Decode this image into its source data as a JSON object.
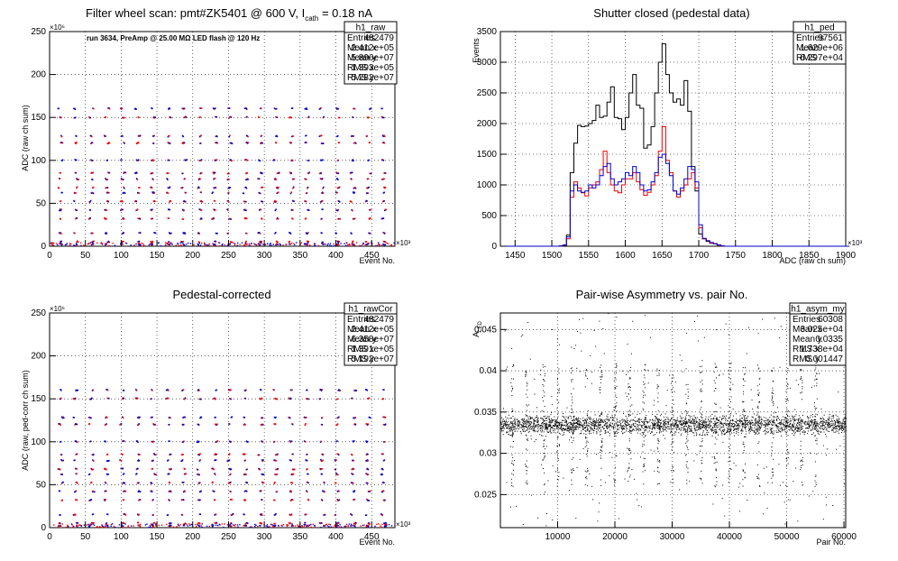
{
  "chart_data": [
    {
      "id": "p1",
      "type": "scatter",
      "title": "Filter wheel scan: pmt#ZK5401 @   600 V, I",
      "title_sub": "cath",
      "title_tail": " = 0.18 nA",
      "annotation": "run 3634, PreAmp @ 25.00 MΩ LED flash @  120 Hz",
      "xlabel": "Event No.",
      "ylabel": "ADC (raw ch sum)",
      "x_multiplier": "×10³",
      "y_multiplier": "×10⁶",
      "xlim": [
        0,
        482479
      ],
      "ylim": [
        0,
        250
      ],
      "x_ticks": [
        0,
        50,
        100,
        150,
        200,
        250,
        300,
        350,
        400,
        450
      ],
      "x_tick_labels": [
        "0",
        "50",
        "100",
        "150",
        "200",
        "250",
        "300",
        "350",
        "400",
        "450"
      ],
      "y_ticks": [
        0,
        50,
        100,
        150,
        200,
        250
      ],
      "y_tick_labels": [
        "0",
        "50",
        "100",
        "150",
        "200",
        "250"
      ],
      "grid": true,
      "levels": [
        160,
        150,
        128,
        120,
        100,
        85,
        78,
        68,
        62,
        52,
        42,
        32,
        15,
        5,
        2
      ],
      "colors": {
        "primary": "#0000cc",
        "secondary": "#ee0000"
      },
      "stats": {
        "name": "h1_raw",
        "rows": [
          {
            "label": "Entries",
            "value": "482479"
          },
          {
            "label": "Mean x",
            "value": "2.412e+05"
          },
          {
            "label": "Mean y",
            "value": "5.896e+07"
          },
          {
            "label": "RMS x",
            "value": "1.393e+05"
          },
          {
            "label": "RMS y",
            "value": "5.282e+07"
          }
        ]
      }
    },
    {
      "id": "p2",
      "type": "line",
      "title": "Shutter closed (pedestal data)",
      "xlabel": "ADC (raw ch sum)",
      "ylabel": "Events",
      "x_multiplier": "×10³",
      "xlim": [
        1430,
        1900
      ],
      "ylim": [
        0,
        3500
      ],
      "x_ticks": [
        1450,
        1500,
        1550,
        1600,
        1650,
        1700,
        1750,
        1800,
        1850,
        1900
      ],
      "x_tick_labels": [
        "1450",
        "1500",
        "1550",
        "1600",
        "1650",
        "1700",
        "1750",
        "1800",
        "1850",
        "1900"
      ],
      "y_ticks": [
        0,
        500,
        1000,
        1500,
        2000,
        2500,
        3000,
        3500
      ],
      "y_tick_labels": [
        "0",
        "500",
        "1000",
        "1500",
        "2000",
        "2500",
        "3000",
        "3500"
      ],
      "grid": true,
      "bin_start": 1430,
      "bin_width": 5,
      "series": [
        {
          "color": "#000000",
          "values": [
            0,
            0,
            0,
            0,
            0,
            0,
            0,
            0,
            0,
            0,
            0,
            0,
            0,
            0,
            0,
            0,
            5,
            20,
            180,
            1200,
            1680,
            1970,
            1950,
            1960,
            2000,
            2050,
            2300,
            2100,
            2120,
            2350,
            2600,
            2100,
            2080,
            1900,
            2100,
            2500,
            2800,
            2300,
            2250,
            1600,
            1650,
            1950,
            2500,
            3000,
            3300,
            2800,
            2500,
            2350,
            2400,
            2300,
            2700,
            2200,
            1300,
            900,
            200,
            120,
            80,
            50,
            40,
            20,
            5,
            0,
            0,
            0,
            0,
            0,
            0,
            0,
            0,
            0,
            0,
            0,
            0,
            0,
            0,
            0,
            0,
            0,
            0,
            0,
            0,
            0,
            0,
            0,
            0,
            0,
            0,
            0,
            0,
            0,
            0,
            0,
            0,
            0,
            0
          ]
        },
        {
          "color": "#ee0000",
          "values": [
            0,
            0,
            0,
            0,
            0,
            0,
            0,
            0,
            0,
            0,
            0,
            0,
            0,
            0,
            0,
            0,
            3,
            15,
            120,
            800,
            1050,
            950,
            870,
            820,
            950,
            1000,
            1050,
            1250,
            1550,
            1200,
            1000,
            900,
            870,
            1000,
            1100,
            1100,
            1200,
            1050,
            920,
            830,
            880,
            1000,
            1150,
            1550,
            1950,
            1400,
            1200,
            900,
            800,
            900,
            1000,
            1100,
            1200,
            950,
            300,
            120,
            90,
            50,
            40,
            20,
            5,
            0,
            0,
            0,
            0,
            0,
            0,
            0,
            0,
            0,
            0,
            0,
            0,
            0,
            0,
            0,
            0,
            0,
            0,
            0,
            0,
            0,
            0,
            0,
            0,
            0,
            0,
            0,
            0,
            0,
            0,
            0,
            0,
            0,
            0
          ]
        },
        {
          "color": "#0000cc",
          "values": [
            0,
            0,
            0,
            0,
            0,
            0,
            0,
            0,
            0,
            0,
            0,
            0,
            0,
            0,
            0,
            0,
            4,
            18,
            150,
            900,
            1000,
            900,
            880,
            900,
            1000,
            950,
            1000,
            1150,
            1300,
            1350,
            1100,
            1000,
            1050,
            1100,
            1200,
            1150,
            1300,
            1200,
            1000,
            900,
            920,
            1050,
            1200,
            1450,
            1500,
            1350,
            1150,
            900,
            850,
            950,
            1100,
            1300,
            1250,
            1050,
            350,
            130,
            90,
            60,
            40,
            20,
            5,
            0,
            0,
            0,
            0,
            0,
            0,
            0,
            0,
            0,
            0,
            0,
            0,
            0,
            0,
            0,
            0,
            0,
            0,
            0,
            0,
            0,
            0,
            0,
            0,
            0,
            0,
            0,
            0,
            0,
            0,
            0,
            0,
            0,
            0
          ]
        }
      ],
      "stats": {
        "name": "h1_ped",
        "rows": [
          {
            "label": "Entries",
            "value": "97561"
          },
          {
            "label": "Mean",
            "value": "1.629e+06"
          },
          {
            "label": "RMS",
            "value": "6.297e+04"
          }
        ]
      }
    },
    {
      "id": "p3",
      "type": "scatter",
      "title": "Pedestal-corrected",
      "xlabel": "Event No.",
      "ylabel": "ADC (raw, ped-corr ch sum)",
      "x_multiplier": "×10³",
      "y_multiplier": "×10⁶",
      "xlim": [
        0,
        482479
      ],
      "ylim": [
        0,
        250
      ],
      "x_ticks": [
        0,
        50,
        100,
        150,
        200,
        250,
        300,
        350,
        400,
        450
      ],
      "x_tick_labels": [
        "0",
        "50",
        "100",
        "150",
        "200",
        "250",
        "300",
        "350",
        "400",
        "450"
      ],
      "y_ticks": [
        0,
        50,
        100,
        150,
        200,
        250
      ],
      "y_tick_labels": [
        "0",
        "50",
        "100",
        "150",
        "200",
        "250"
      ],
      "grid": true,
      "levels": [
        160,
        150,
        128,
        120,
        100,
        85,
        78,
        68,
        62,
        52,
        42,
        32,
        15,
        5,
        2
      ],
      "colors": {
        "primary": "#0000cc",
        "secondary": "#ee0000"
      },
      "stats": {
        "name": "h1_rawCor",
        "rows": [
          {
            "label": "Entries",
            "value": "482479"
          },
          {
            "label": "Mean x",
            "value": "2.412e+05"
          },
          {
            "label": "Mean y",
            "value": "6.358e+07"
          },
          {
            "label": "RMS x",
            "value": "1.391e+05"
          },
          {
            "label": "RMS y",
            "value": "5.192e+07"
          }
        ]
      }
    },
    {
      "id": "p4",
      "type": "scatter",
      "title": "Pair-wise Asymmetry vs. pair No.",
      "xlabel": "Pair No.",
      "ylabel": "A",
      "ylabel_sub": "LED",
      "xlim": [
        0,
        60308
      ],
      "ylim": [
        0.021,
        0.047
      ],
      "x_ticks": [
        10000,
        20000,
        30000,
        40000,
        50000,
        60000
      ],
      "x_tick_labels": [
        "10000",
        "20000",
        "30000",
        "40000",
        "50000",
        "60000"
      ],
      "y_ticks": [
        0.025,
        0.03,
        0.035,
        0.04,
        0.045
      ],
      "y_tick_labels": [
        "0.025",
        "0.03",
        "0.035",
        "0.04",
        "0.045"
      ],
      "grid": true,
      "band_center": 0.0335,
      "spike_pairs": [
        2000,
        4500,
        7500,
        10000,
        12500,
        15000,
        17500,
        20000,
        22500,
        25000,
        27500,
        30000,
        32500,
        35000,
        37500,
        40000,
        42500,
        45000,
        47500,
        50000,
        52500,
        55000
      ],
      "colors": {
        "points": "#000000"
      },
      "stats": {
        "name": "h1_asym_my",
        "rows": [
          {
            "label": "Entries",
            "value": "60308"
          },
          {
            "label": "Mean x",
            "value": "3.025e+04"
          },
          {
            "label": "Mean y",
            "value": "0.0335"
          },
          {
            "label": "RMS x",
            "value": "1.738e+04"
          },
          {
            "label": "RMS y",
            "value": "0.001447"
          }
        ]
      }
    }
  ]
}
